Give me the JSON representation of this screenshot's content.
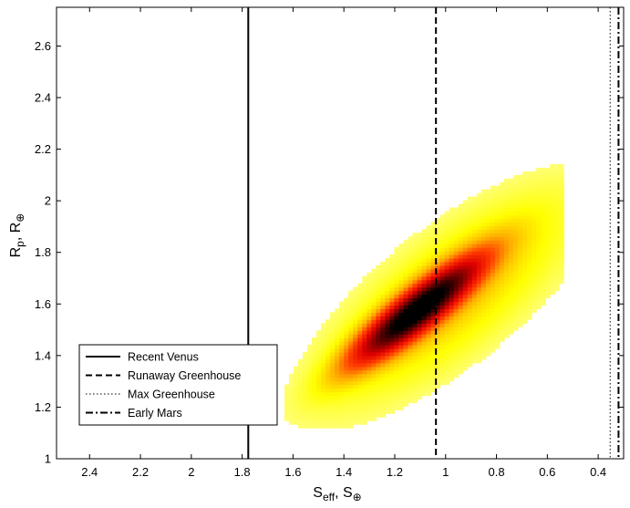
{
  "chart_data": {
    "type": "heatmap",
    "xlabel": {
      "base": "S",
      "sub1": "eff",
      "sep": ", S",
      "sub2": "⊕"
    },
    "ylabel": {
      "base": "R",
      "sub1": "p",
      "sep": ", R",
      "sub2": "⊕"
    },
    "x_reversed": true,
    "xlim": [
      2.53,
      0.3
    ],
    "ylim": [
      1.0,
      2.75
    ],
    "x_ticks": [
      2.4,
      2.2,
      2.0,
      1.8,
      1.6,
      1.4,
      1.2,
      1.0,
      0.8,
      0.6,
      0.4
    ],
    "x_tick_labels": [
      "2.4",
      "2.2",
      "2",
      "1.8",
      "1.6",
      "1.4",
      "1.2",
      "1",
      "0.8",
      "0.6",
      "0.4"
    ],
    "y_ticks": [
      1.0,
      1.2,
      1.4,
      1.6,
      1.8,
      2.0,
      2.2,
      2.4,
      2.6
    ],
    "y_tick_labels": [
      "1",
      "1.2",
      "1.4",
      "1.6",
      "1.8",
      "2",
      "2.2",
      "2.4",
      "2.6"
    ],
    "density": {
      "peak_s": 1.12,
      "peak_r": 1.57,
      "sigma_major": 0.205,
      "sigma_minor": 0.048,
      "tail_sigma_major": 0.42,
      "tail_sigma_minor": 0.15,
      "tail_weight": 0.18,
      "tail_shift_s": 0.12,
      "tail_shift_r": 0.05,
      "slope_r_per_s": -0.78,
      "cell_s": 0.018,
      "cell_r": 0.014,
      "colormap": [
        "#ffffff",
        "#ffff80",
        "#ffff00",
        "#ffb000",
        "#ff3c00",
        "#e00000",
        "#700000",
        "#000000"
      ]
    },
    "vertical_lines": [
      {
        "name": "Recent Venus",
        "s": 1.776,
        "style": "solid"
      },
      {
        "name": "Runaway Greenhouse",
        "s": 1.038,
        "style": "dashed"
      },
      {
        "name": "Max Greenhouse",
        "s": 0.353,
        "style": "dotted"
      },
      {
        "name": "Early Mars",
        "s": 0.32,
        "style": "dashdot"
      }
    ],
    "legend": {
      "placement": "bottom-left",
      "entries": [
        "Recent Venus",
        "Runaway Greenhouse",
        "Max Greenhouse",
        "Early Mars"
      ]
    },
    "grid": false
  }
}
